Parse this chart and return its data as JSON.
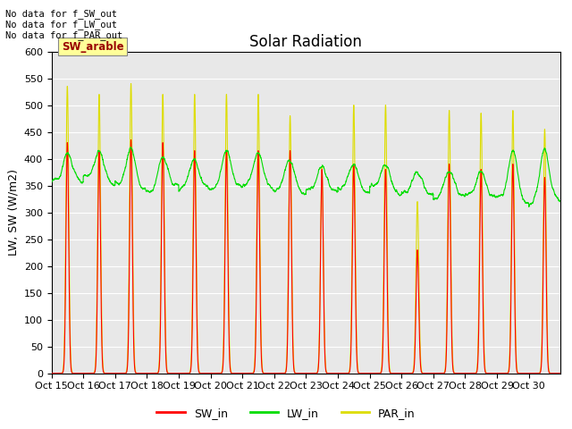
{
  "title": "Solar Radiation",
  "ylabel": "LW, SW (W/m2)",
  "ylim": [
    0,
    550
  ],
  "background_color": "#e8e8e8",
  "top_text": [
    "No data for f_SW_out",
    "No data for f_LW_out",
    "No data for f_PAR_out"
  ],
  "sw_arable_label": "SW_arable",
  "xtick_labels": [
    "Oct 15",
    "Oct 16",
    "Oct 17",
    "Oct 18",
    "Oct 19",
    "Oct 20",
    "Oct 21",
    "Oct 22",
    "Oct 23",
    "Oct 24",
    "Oct 25",
    "Oct 26",
    "Oct 27",
    "Oct 28",
    "Oct 29",
    "Oct 30"
  ],
  "legend_labels": [
    "SW_in",
    "LW_in",
    "PAR_in"
  ],
  "sw_color": "#ff0000",
  "lw_color": "#00dd00",
  "par_color": "#dddd00",
  "n_days": 16,
  "pts_per_day": 288,
  "par_peaks": [
    535,
    520,
    540,
    520,
    520,
    520,
    520,
    480,
    385,
    500,
    500,
    320,
    490,
    485,
    490,
    455
  ],
  "sw_peaks": [
    430,
    415,
    435,
    430,
    415,
    415,
    415,
    415,
    380,
    390,
    380,
    230,
    390,
    380,
    390,
    365
  ],
  "lw_base": [
    360,
    358,
    345,
    345,
    345,
    345,
    345,
    340,
    340,
    340,
    340,
    335,
    330,
    330,
    320,
    320
  ],
  "lw_day_peaks": [
    405,
    415,
    420,
    400,
    398,
    415,
    415,
    395,
    385,
    390,
    390,
    375,
    375,
    375,
    415,
    415
  ],
  "title_fontsize": 12,
  "axis_fontsize": 9,
  "tick_fontsize": 8
}
